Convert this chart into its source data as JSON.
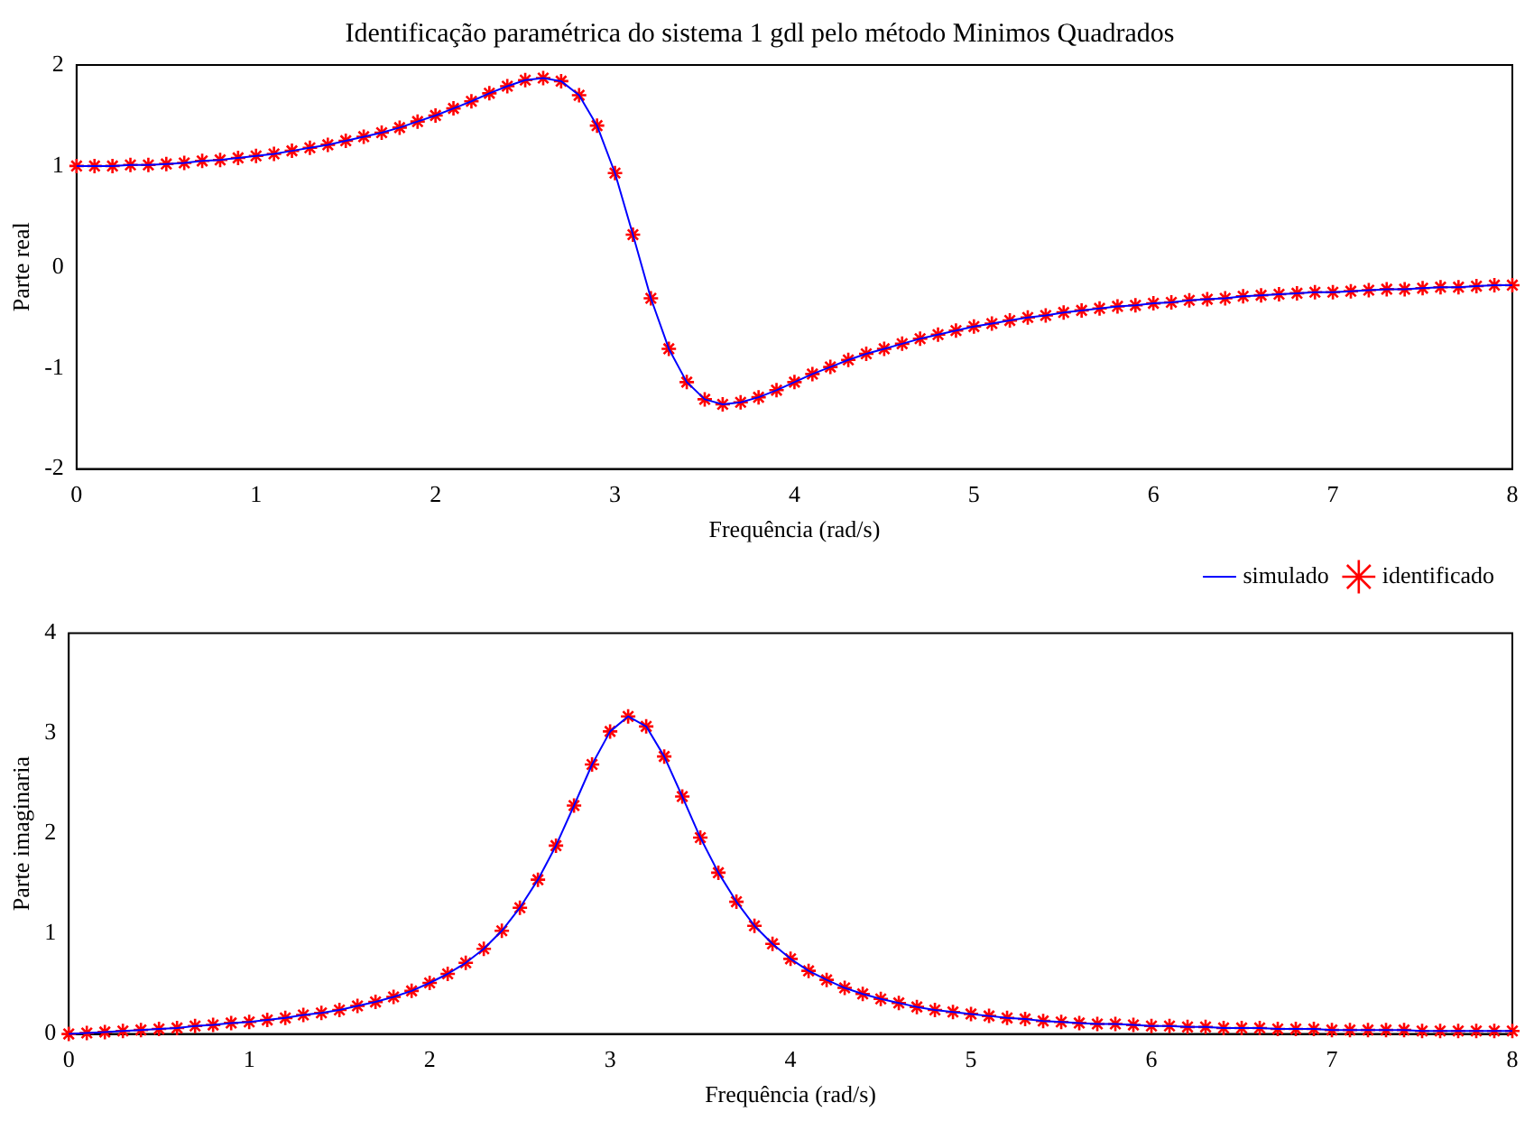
{
  "chart_data": [
    {
      "type": "line",
      "title": "Identificação paramétrica do sistema 1 gdl pelo método Minimos Quadrados",
      "xlabel": "Frequência (rad/s)",
      "ylabel": "Parte real",
      "xlim": [
        0,
        8
      ],
      "xticks": [
        0,
        1,
        2,
        3,
        4,
        5,
        6,
        7,
        8
      ],
      "ylim": [
        -2,
        2
      ],
      "yticks": [
        -2,
        -1,
        0,
        1,
        2
      ],
      "grid": false,
      "legend": "bottom right",
      "x": [
        0,
        0.1,
        0.2,
        0.3,
        0.4,
        0.5,
        0.6,
        0.7,
        0.8,
        0.9,
        1,
        1.1,
        1.2,
        1.3,
        1.4,
        1.5,
        1.6,
        1.7,
        1.8,
        1.9,
        2,
        2.1,
        2.2,
        2.3,
        2.4,
        2.5,
        2.6,
        2.7,
        2.8,
        2.9,
        3,
        3.1,
        3.2,
        3.3,
        3.4,
        3.5,
        3.6,
        3.7,
        3.8,
        3.9,
        4,
        4.1,
        4.2,
        4.3,
        4.4,
        4.5,
        4.6,
        4.7,
        4.8,
        4.9,
        5,
        5.1,
        5.2,
        5.3,
        5.4,
        5.5,
        5.6,
        5.7,
        5.8,
        5.9,
        6,
        6.1,
        6.2,
        6.3,
        6.4,
        6.5,
        6.6,
        6.7,
        6.8,
        6.9,
        7,
        7.1,
        7.2,
        7.3,
        7.4,
        7.5,
        7.6,
        7.7,
        7.8,
        7.9,
        8
      ],
      "series": [
        {
          "name": "simulado",
          "type": "line",
          "color": "#0000ff",
          "marker": "none",
          "line_style": "solid",
          "values": [
            1,
            1,
            1,
            1.01,
            1.01,
            1.02,
            1.03,
            1.05,
            1.06,
            1.08,
            1.1,
            1.12,
            1.15,
            1.18,
            1.21,
            1.25,
            1.29,
            1.33,
            1.38,
            1.44,
            1.5,
            1.57,
            1.64,
            1.72,
            1.79,
            1.85,
            1.87,
            1.84,
            1.7,
            1.4,
            0.93,
            0.32,
            -0.31,
            -0.81,
            -1.14,
            -1.31,
            -1.36,
            -1.34,
            -1.29,
            -1.22,
            -1.14,
            -1.06,
            -0.99,
            -0.92,
            -0.86,
            -0.81,
            -0.76,
            -0.71,
            -0.67,
            -0.63,
            -0.59,
            -0.56,
            -0.53,
            -0.5,
            -0.48,
            -0.45,
            -0.43,
            -0.41,
            -0.39,
            -0.38,
            -0.36,
            -0.35,
            -0.33,
            -0.32,
            -0.31,
            -0.29,
            -0.28,
            -0.27,
            -0.26,
            -0.25,
            -0.25,
            -0.24,
            -0.23,
            -0.22,
            -0.22,
            -0.21,
            -0.2,
            -0.2,
            -0.19,
            -0.18,
            -0.18
          ]
        },
        {
          "name": "identificado",
          "type": "scatter",
          "color": "#ff0000",
          "marker": "cross",
          "values": [
            1,
            1,
            1,
            1.01,
            1.01,
            1.02,
            1.03,
            1.05,
            1.06,
            1.08,
            1.1,
            1.12,
            1.15,
            1.18,
            1.21,
            1.25,
            1.29,
            1.33,
            1.38,
            1.44,
            1.5,
            1.57,
            1.64,
            1.72,
            1.79,
            1.85,
            1.87,
            1.84,
            1.7,
            1.4,
            0.93,
            0.32,
            -0.31,
            -0.81,
            -1.14,
            -1.31,
            -1.36,
            -1.34,
            -1.29,
            -1.22,
            -1.14,
            -1.06,
            -0.99,
            -0.92,
            -0.86,
            -0.81,
            -0.76,
            -0.71,
            -0.67,
            -0.63,
            -0.59,
            -0.56,
            -0.53,
            -0.5,
            -0.48,
            -0.45,
            -0.43,
            -0.41,
            -0.39,
            -0.38,
            -0.36,
            -0.35,
            -0.33,
            -0.32,
            -0.31,
            -0.29,
            -0.28,
            -0.27,
            -0.26,
            -0.25,
            -0.25,
            -0.24,
            -0.23,
            -0.22,
            -0.22,
            -0.21,
            -0.2,
            -0.2,
            -0.19,
            -0.18,
            -0.18
          ]
        }
      ]
    },
    {
      "type": "line",
      "xlabel": "Frequência (rad/s)",
      "ylabel": "Parte imaginaria",
      "xlim": [
        0,
        8
      ],
      "xticks": [
        0,
        1,
        2,
        3,
        4,
        5,
        6,
        7,
        8
      ],
      "ylim": [
        0,
        4
      ],
      "yticks": [
        0,
        1,
        2,
        3,
        4
      ],
      "grid": false,
      "x": [
        0,
        0.1,
        0.2,
        0.3,
        0.4,
        0.5,
        0.6,
        0.7,
        0.8,
        0.9,
        1,
        1.1,
        1.2,
        1.3,
        1.4,
        1.5,
        1.6,
        1.7,
        1.8,
        1.9,
        2,
        2.1,
        2.2,
        2.3,
        2.4,
        2.5,
        2.6,
        2.7,
        2.8,
        2.9,
        3,
        3.1,
        3.2,
        3.3,
        3.4,
        3.5,
        3.6,
        3.7,
        3.8,
        3.9,
        4,
        4.1,
        4.2,
        4.3,
        4.4,
        4.5,
        4.6,
        4.7,
        4.8,
        4.9,
        5,
        5.1,
        5.2,
        5.3,
        5.4,
        5.5,
        5.6,
        5.7,
        5.8,
        5.9,
        6,
        6.1,
        6.2,
        6.3,
        6.4,
        6.5,
        6.6,
        6.7,
        6.8,
        6.9,
        7,
        7.1,
        7.2,
        7.3,
        7.4,
        7.5,
        7.6,
        7.7,
        7.8,
        7.9,
        8
      ],
      "series": [
        {
          "type": "line",
          "color": "#0000ff",
          "marker": "none",
          "line_style": "solid",
          "values": [
            0,
            0.01,
            0.02,
            0.03,
            0.04,
            0.05,
            0.06,
            0.08,
            0.09,
            0.11,
            0.12,
            0.14,
            0.16,
            0.19,
            0.21,
            0.24,
            0.28,
            0.32,
            0.37,
            0.43,
            0.51,
            0.6,
            0.71,
            0.85,
            1.03,
            1.26,
            1.54,
            1.88,
            2.28,
            2.69,
            3.02,
            3.17,
            3.07,
            2.77,
            2.37,
            1.96,
            1.61,
            1.32,
            1.08,
            0.9,
            0.75,
            0.63,
            0.54,
            0.46,
            0.4,
            0.35,
            0.31,
            0.27,
            0.24,
            0.22,
            0.2,
            0.18,
            0.16,
            0.15,
            0.13,
            0.12,
            0.11,
            0.1,
            0.1,
            0.09,
            0.08,
            0.08,
            0.07,
            0.07,
            0.06,
            0.06,
            0.06,
            0.05,
            0.05,
            0.05,
            0.04,
            0.04,
            0.04,
            0.04,
            0.04,
            0.03,
            0.03,
            0.03,
            0.03,
            0.03,
            0.03
          ]
        },
        {
          "type": "scatter",
          "color": "#ff0000",
          "marker": "cross",
          "values": [
            0,
            0.01,
            0.02,
            0.03,
            0.04,
            0.05,
            0.06,
            0.08,
            0.09,
            0.11,
            0.12,
            0.14,
            0.16,
            0.19,
            0.21,
            0.24,
            0.28,
            0.32,
            0.37,
            0.43,
            0.51,
            0.6,
            0.71,
            0.85,
            1.03,
            1.26,
            1.54,
            1.88,
            2.28,
            2.69,
            3.02,
            3.17,
            3.07,
            2.77,
            2.37,
            1.96,
            1.61,
            1.32,
            1.08,
            0.9,
            0.75,
            0.63,
            0.54,
            0.46,
            0.4,
            0.35,
            0.31,
            0.27,
            0.24,
            0.22,
            0.2,
            0.18,
            0.16,
            0.15,
            0.13,
            0.12,
            0.11,
            0.1,
            0.1,
            0.09,
            0.08,
            0.08,
            0.07,
            0.07,
            0.06,
            0.06,
            0.06,
            0.05,
            0.05,
            0.05,
            0.04,
            0.04,
            0.04,
            0.04,
            0.04,
            0.03,
            0.03,
            0.03,
            0.03,
            0.03,
            0.03
          ]
        }
      ]
    }
  ]
}
